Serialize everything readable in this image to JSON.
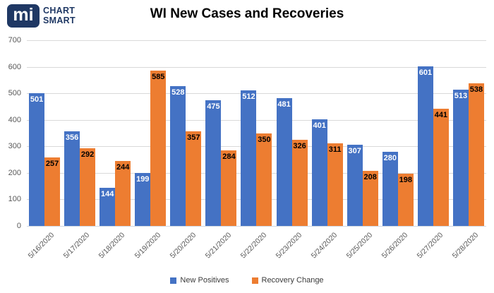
{
  "logo": {
    "mark": "mi",
    "name_line1": "CHART",
    "name_line2": "SMART"
  },
  "chart_data": {
    "type": "bar",
    "title": "WI New Cases and Recoveries",
    "categories": [
      "5/16/2020",
      "5/17/2020",
      "5/18/2020",
      "5/19/2020",
      "5/20/2020",
      "5/21/2020",
      "5/22/2020",
      "5/23/2020",
      "5/24/2020",
      "5/25/2020",
      "5/26/2020",
      "5/27/2020",
      "5/28/2020"
    ],
    "series": [
      {
        "name": "New Positives",
        "color": "#4472C4",
        "label_color": "#FFFFFF",
        "values": [
          501,
          356,
          144,
          199,
          528,
          475,
          512,
          481,
          401,
          307,
          280,
          601,
          513
        ]
      },
      {
        "name": "Recovery Change",
        "color": "#ED7D31",
        "label_color": "#000000",
        "values": [
          257,
          292,
          244,
          585,
          357,
          284,
          350,
          326,
          311,
          208,
          198,
          441,
          538
        ]
      }
    ],
    "ylim": [
      0,
      700
    ],
    "yticks": [
      0,
      100,
      200,
      300,
      400,
      500,
      600,
      700
    ],
    "grid": true,
    "legend_position": "bottom",
    "data_labels": "inside-end"
  },
  "colors": {
    "axis_text": "#595959",
    "gridline": "#D9D9D9",
    "title_text": "#000000",
    "logo_navy": "#1F3864",
    "background": "#FFFFFF"
  }
}
